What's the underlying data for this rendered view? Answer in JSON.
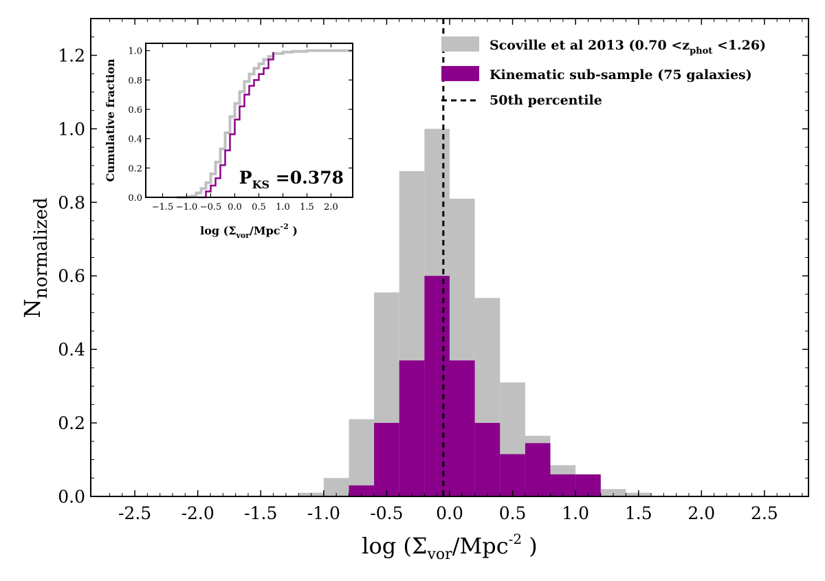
{
  "chart_data": {
    "type": "bar",
    "xlim": [
      -2.85,
      2.85
    ],
    "ylim": [
      0,
      1.3
    ],
    "x_ticks": [
      -2.5,
      -2.0,
      -1.5,
      -1.0,
      -0.5,
      0.0,
      0.5,
      1.0,
      1.5,
      2.0,
      2.5
    ],
    "x_tick_labels": [
      "-2.5",
      "-2.0",
      "-1.5",
      "-1.0",
      "-0.5",
      "0.0",
      "0.5",
      "1.0",
      "1.5",
      "2.0",
      "2.5"
    ],
    "y_ticks": [
      0.0,
      0.2,
      0.4,
      0.6,
      0.8,
      1.0,
      1.2
    ],
    "y_tick_labels": [
      "0.0",
      "0.2",
      "0.4",
      "0.6",
      "0.8",
      "1.0",
      "1.2"
    ],
    "xlabel": {
      "main": "log (Σ",
      "sub": "vor",
      "mid": "/Mpc",
      "sup": "-2",
      "end": " )"
    },
    "ylabel": {
      "main": "N",
      "sub": "normalized"
    },
    "series": [
      {
        "name": "Scoville et al 2013 (0.70 <z",
        "name_sub": "phot",
        "name_end": " <1.26)",
        "color": "#c0c0c0",
        "bin_edges": [
          -1.2,
          -1.0,
          -0.8,
          -0.6,
          -0.4,
          -0.2,
          0.0,
          0.2,
          0.4,
          0.6,
          0.8,
          1.0,
          1.2,
          1.4,
          1.6
        ],
        "values": [
          0.01,
          0.05,
          0.21,
          0.555,
          0.885,
          1.0,
          0.81,
          0.54,
          0.31,
          0.165,
          0.085,
          0.045,
          0.02,
          0.01
        ]
      },
      {
        "name": "Kinematic sub-sample (75 galaxies)",
        "color": "#8b008b",
        "bin_edges": [
          -0.8,
          -0.6,
          -0.4,
          -0.2,
          0.0,
          0.2,
          0.4,
          0.6,
          0.8,
          1.0,
          1.2
        ],
        "values": [
          0.03,
          0.2,
          0.37,
          0.6,
          0.37,
          0.2,
          0.115,
          0.145,
          0.06,
          0.06
        ]
      }
    ],
    "vline": {
      "x": -0.05,
      "label": "50th percentile",
      "style": "dashed",
      "color": "#000000"
    },
    "legend": {
      "position": "top-right"
    },
    "inset": {
      "type": "line",
      "xlim": [
        -1.85,
        2.45
      ],
      "ylim": [
        0,
        1.05
      ],
      "x_ticks": [
        -1.5,
        -1.0,
        -0.5,
        0.0,
        0.5,
        1.0,
        1.5,
        2.0
      ],
      "x_tick_labels": [
        "−1.5",
        "−1.0",
        "−0.5",
        "0.0",
        "0.5",
        "1.0",
        "1.5",
        "2.0"
      ],
      "y_ticks": [
        0.0,
        0.2,
        0.4,
        0.6,
        0.8,
        1.0
      ],
      "y_tick_labels": [
        "0.0",
        "0.2",
        "0.4",
        "0.6",
        "0.8",
        "1.0"
      ],
      "xlabel": {
        "main": "log (Σ",
        "sub": "vor",
        "mid": "/Mpc",
        "sup": "-2",
        "end": " )"
      },
      "ylabel": "Cumulative fraction",
      "annotation": {
        "main": "P",
        "sub": "KS",
        "end": " =0.378"
      },
      "series": [
        {
          "name": "Scoville et al 2013",
          "color": "#c0c0c0",
          "x": [
            -1.2,
            -1.0,
            -0.9,
            -0.8,
            -0.7,
            -0.6,
            -0.5,
            -0.4,
            -0.3,
            -0.2,
            -0.1,
            0.0,
            0.1,
            0.2,
            0.3,
            0.4,
            0.5,
            0.6,
            0.7,
            0.8,
            1.0,
            1.2,
            1.5,
            2.45
          ],
          "y": [
            0.0,
            0.003,
            0.01,
            0.03,
            0.06,
            0.1,
            0.16,
            0.24,
            0.33,
            0.44,
            0.55,
            0.64,
            0.72,
            0.79,
            0.84,
            0.88,
            0.91,
            0.94,
            0.96,
            0.98,
            0.99,
            0.995,
            1.0,
            1.0
          ]
        },
        {
          "name": "Kinematic sub-sample",
          "color": "#8b008b",
          "x": [
            -0.75,
            -0.6,
            -0.5,
            -0.4,
            -0.3,
            -0.2,
            -0.1,
            0.0,
            0.1,
            0.2,
            0.3,
            0.4,
            0.5,
            0.6,
            0.7,
            0.8
          ],
          "y": [
            0.0,
            0.04,
            0.08,
            0.13,
            0.22,
            0.32,
            0.43,
            0.53,
            0.62,
            0.7,
            0.76,
            0.8,
            0.84,
            0.88,
            0.94,
            0.99
          ]
        }
      ]
    }
  }
}
